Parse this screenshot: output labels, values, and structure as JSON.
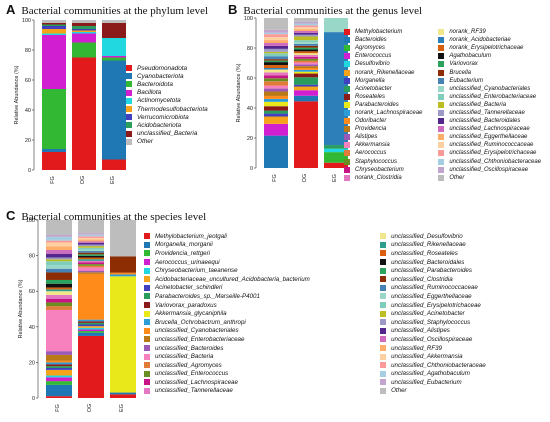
{
  "panels": {
    "A": {
      "letter": "A",
      "title": "Bacterial communities at the phylum level"
    },
    "B": {
      "letter": "B",
      "title": "Bacterial communities at the genus level"
    },
    "C": {
      "letter": "C",
      "title": "Bacterial communities at the species level"
    }
  },
  "chart_data": [
    {
      "id": "A",
      "type": "bar",
      "stacked": true,
      "title": "Bacterial communities at the phylum level",
      "ylabel": "Relative Abundance (%)",
      "ylim": [
        0,
        100
      ],
      "yticks": [
        "0",
        "20",
        "40",
        "60",
        "80",
        "100"
      ],
      "categories": [
        "FG",
        "OG",
        "EG"
      ],
      "series": [
        {
          "name": "Pseudomonadota",
          "color": "#e31a1c",
          "values": [
            12,
            75,
            7
          ]
        },
        {
          "name": "Cyanobacteriota",
          "color": "#1f78b4",
          "values": [
            2,
            0,
            66
          ]
        },
        {
          "name": "Bacteroidota",
          "color": "#33b833",
          "values": [
            40,
            10,
            2
          ]
        },
        {
          "name": "Bacillota",
          "color": "#d01ed0",
          "values": [
            36,
            6,
            1
          ]
        },
        {
          "name": "Actinomycetota",
          "color": "#22d8e0",
          "values": [
            1,
            1,
            12
          ]
        },
        {
          "name": "Thermodesulfobacteriota",
          "color": "#f5a31a",
          "values": [
            3,
            1,
            0
          ]
        },
        {
          "name": "Verrucomicrobiota",
          "color": "#3f3fbf",
          "values": [
            2,
            1,
            0
          ]
        },
        {
          "name": "Acidobacteriota",
          "color": "#2a9d5c",
          "values": [
            1,
            2,
            0
          ]
        },
        {
          "name": "unclassified_Bacteria",
          "color": "#8b1a1a",
          "values": [
            1,
            2,
            10
          ]
        },
        {
          "name": "Other",
          "color": "#bdbdbd",
          "values": [
            2,
            2,
            2
          ]
        }
      ]
    },
    {
      "id": "B",
      "type": "bar",
      "stacked": true,
      "title": "Bacterial communities at the genus level",
      "ylabel": "Relative Abundance (%)",
      "ylim": [
        0,
        100
      ],
      "yticks": [
        "0",
        "20",
        "40",
        "60",
        "80",
        "100"
      ],
      "categories": [
        "FG",
        "OG",
        "EG"
      ],
      "series": [
        {
          "name": "Methylobacterium",
          "color": "#e31a1c",
          "values": [
            0,
            36,
            3
          ]
        },
        {
          "name": "Bacteroides",
          "color": "#1f78b4",
          "values": [
            22,
            3,
            0
          ]
        },
        {
          "name": "Agromyces",
          "color": "#33b833",
          "values": [
            0,
            0,
            6
          ]
        },
        {
          "name": "Enterococcus",
          "color": "#d01ed0",
          "values": [
            8,
            3,
            0
          ]
        },
        {
          "name": "Desulfovibrio",
          "color": "#22d8e0",
          "values": [
            0,
            0,
            2
          ]
        },
        {
          "name": "norank_Rikenellaceae",
          "color": "#f5a31a",
          "values": [
            5,
            2,
            0
          ]
        },
        {
          "name": "Morganella",
          "color": "#3f3fbf",
          "values": [
            2,
            1,
            0
          ]
        },
        {
          "name": "Acinetobacter",
          "color": "#2a9d5c",
          "values": [
            2,
            4,
            2
          ]
        },
        {
          "name": "Roseateles",
          "color": "#8b1a1a",
          "values": [
            3,
            2,
            0
          ]
        },
        {
          "name": "Parabacteroides",
          "color": "#e8e81a",
          "values": [
            3,
            1,
            0
          ]
        },
        {
          "name": "norank_Lachnospiraceae",
          "color": "#2b9ed8",
          "values": [
            2,
            1,
            0
          ]
        },
        {
          "name": "Odoribacter",
          "color": "#ff8c1a",
          "values": [
            2,
            1,
            0
          ]
        },
        {
          "name": "Providencia",
          "color": "#b97917",
          "values": [
            3,
            1,
            0
          ]
        },
        {
          "name": "Alistipes",
          "color": "#9b59b6",
          "values": [
            2,
            1,
            0
          ]
        },
        {
          "name": "Akkermansia",
          "color": "#f781bf",
          "values": [
            2,
            1,
            0
          ]
        },
        {
          "name": "Aerococcus",
          "color": "#e07b39",
          "values": [
            3,
            1,
            0
          ]
        },
        {
          "name": "Staphylococcus",
          "color": "#6b8e23",
          "values": [
            2,
            1,
            0
          ]
        },
        {
          "name": "Chryseobacterium",
          "color": "#c71585",
          "values": [
            2,
            1,
            0
          ]
        },
        {
          "name": "norank_Clostridia",
          "color": "#e377c2",
          "values": [
            2,
            1,
            0
          ]
        },
        {
          "name": "norank_RF39",
          "color": "#f0e68c",
          "values": [
            2,
            1,
            0
          ]
        },
        {
          "name": "norank_Acidobacteriae",
          "color": "#2c7fb8",
          "values": [
            1,
            0,
            64
          ]
        },
        {
          "name": "norank_Erysipelotrichaceae",
          "color": "#d95f0e",
          "values": [
            2,
            1,
            0
          ]
        },
        {
          "name": "Agathobaculum",
          "color": "#111111",
          "values": [
            2,
            1,
            0
          ]
        },
        {
          "name": "Variovorax",
          "color": "#2ca25f",
          "values": [
            1,
            1,
            0
          ]
        },
        {
          "name": "Brucella",
          "color": "#8c2d04",
          "values": [
            1,
            1,
            0
          ]
        },
        {
          "name": "Eubacterium",
          "color": "#4682b4",
          "values": [
            2,
            1,
            0
          ]
        },
        {
          "name": "unclassified_Cyanobacteriales",
          "color": "#99d8c9",
          "values": [
            0,
            1,
            8
          ]
        },
        {
          "name": "unclassified_Enterobacteriaceae",
          "color": "#7fcdbb",
          "values": [
            2,
            1,
            0
          ]
        },
        {
          "name": "unclassified_Bacteria",
          "color": "#bcbd22",
          "values": [
            1,
            2,
            0
          ]
        },
        {
          "name": "unclassified_Tannerellaceae",
          "color": "#9e9ac8",
          "values": [
            2,
            1,
            0
          ]
        },
        {
          "name": "unclassified_Bacteroidales",
          "color": "#54278f",
          "values": [
            2,
            1,
            0
          ]
        },
        {
          "name": "unclassified_Lachnospiraceae",
          "color": "#ce6dbd",
          "values": [
            2,
            1,
            0
          ]
        },
        {
          "name": "unclassified_Eggerthellaceae",
          "color": "#fdae6b",
          "values": [
            2,
            1,
            0
          ]
        },
        {
          "name": "unclassified_Ruminococcaceae",
          "color": "#fdd0a2",
          "values": [
            2,
            1,
            0
          ]
        },
        {
          "name": "unclassified_Erysipelotrichaceae",
          "color": "#fb9a99",
          "values": [
            2,
            1,
            0
          ]
        },
        {
          "name": "unclassified_Chthoniobacteraceae",
          "color": "#a6cee3",
          "values": [
            1,
            1,
            0
          ]
        },
        {
          "name": "unclassified_Oscillospiraceae",
          "color": "#c2a5cf",
          "values": [
            2,
            1,
            0
          ]
        },
        {
          "name": "Other",
          "color": "#bdbdbd",
          "values": [
            8,
            2,
            0
          ]
        }
      ]
    },
    {
      "id": "C",
      "type": "bar",
      "stacked": true,
      "title": "Bacterial communities at the species level",
      "ylabel": "Relative Abundance (%)",
      "ylim": [
        0,
        100
      ],
      "yticks": [
        "0",
        "20",
        "40",
        "60",
        "80",
        "100"
      ],
      "categories": [
        "FG",
        "OG",
        "EG"
      ],
      "series": [
        {
          "name": "Methylobacterium_jeotgali",
          "color": "#e31a1c",
          "values": [
            1,
            38,
            2
          ]
        },
        {
          "name": "Morganella_morganii",
          "color": "#1f78b4",
          "values": [
            6,
            2,
            1
          ]
        },
        {
          "name": "Providencia_rettgeri",
          "color": "#33b833",
          "values": [
            2,
            1,
            0
          ]
        },
        {
          "name": "Aerococcus_urinaeequi",
          "color": "#d01ed0",
          "values": [
            2,
            1,
            0
          ]
        },
        {
          "name": "Chryseobacterium_taeanense",
          "color": "#22d8e0",
          "values": [
            1,
            1,
            0
          ]
        },
        {
          "name": "Acidobacteriaceae_uncultured_Acidobacteria_bacterium",
          "color": "#f5a31a",
          "values": [
            3,
            1,
            0
          ]
        },
        {
          "name": "Acinetobacter_schindleri",
          "color": "#3f3fbf",
          "values": [
            1,
            1,
            0
          ]
        },
        {
          "name": "Parabacteroides_sp._Marseille-P4001",
          "color": "#2a9d5c",
          "values": [
            1,
            1,
            0
          ]
        },
        {
          "name": "Variovorax_paradoxus",
          "color": "#8b1a1a",
          "values": [
            1,
            1,
            0
          ]
        },
        {
          "name": "Akkermansia_glycaniphila",
          "color": "#e8e81a",
          "values": [
            0,
            0,
            64
          ]
        },
        {
          "name": "Brucella_Ochrobactrum_anthropi",
          "color": "#2b9ed8",
          "values": [
            1,
            1,
            1
          ]
        },
        {
          "name": "unclassified_Cyanobacteriales",
          "color": "#ff8c1a",
          "values": [
            1,
            28,
            1
          ]
        },
        {
          "name": "unclassified_Enterobacteriaceae",
          "color": "#b97917",
          "values": [
            3,
            1,
            0
          ]
        },
        {
          "name": "unclassified_Bacteroides",
          "color": "#9b59b6",
          "values": [
            2,
            1,
            0
          ]
        },
        {
          "name": "unclassified_Bacteria",
          "color": "#f781bf",
          "values": [
            22,
            2,
            0
          ]
        },
        {
          "name": "unclassified_Agromyces",
          "color": "#e07b39",
          "values": [
            2,
            1,
            0
          ]
        },
        {
          "name": "unclassified_Enterococcus",
          "color": "#6b8e23",
          "values": [
            2,
            1,
            0
          ]
        },
        {
          "name": "unclassified_Lachnospiraceae",
          "color": "#c71585",
          "values": [
            2,
            1,
            0
          ]
        },
        {
          "name": "unclassified_Tannerellaceae",
          "color": "#e377c2",
          "values": [
            2,
            1,
            0
          ]
        },
        {
          "name": "unclassified_Desulfovibrio",
          "color": "#f0e68c",
          "values": [
            2,
            0,
            0
          ]
        },
        {
          "name": "unclassified_Rikenellaceae",
          "color": "#2c9c8c",
          "values": [
            1,
            1,
            0
          ]
        },
        {
          "name": "unclassified_Roseateles",
          "color": "#d95f0e",
          "values": [
            1,
            1,
            0
          ]
        },
        {
          "name": "unclassified_Bacteroidales",
          "color": "#111111",
          "values": [
            2,
            1,
            0
          ]
        },
        {
          "name": "unclassified_Parabacteroides",
          "color": "#2ca25f",
          "values": [
            2,
            1,
            0
          ]
        },
        {
          "name": "unclassified_Clostridia",
          "color": "#8c2d04",
          "values": [
            4,
            1,
            9
          ]
        },
        {
          "name": "unclassified_Ruminococcaceae",
          "color": "#4682b4",
          "values": [
            2,
            1,
            0
          ]
        },
        {
          "name": "unclassified_Eggerthellaceae",
          "color": "#99d8c9",
          "values": [
            2,
            1,
            0
          ]
        },
        {
          "name": "unclassified_Erysipelotrichaceae",
          "color": "#7fcdbb",
          "values": [
            2,
            1,
            0
          ]
        },
        {
          "name": "unclassified_Acinetobacter",
          "color": "#bcbd22",
          "values": [
            1,
            1,
            0
          ]
        },
        {
          "name": "unclassified_Staphylococcus",
          "color": "#9e9ac8",
          "values": [
            1,
            1,
            0
          ]
        },
        {
          "name": "unclassified_Alistipes",
          "color": "#54278f",
          "values": [
            2,
            1,
            0
          ]
        },
        {
          "name": "unclassified_Oscillospiraceae",
          "color": "#ce6dbd",
          "values": [
            2,
            1,
            0
          ]
        },
        {
          "name": "unclassified_RF39",
          "color": "#fdae6b",
          "values": [
            2,
            1,
            0
          ]
        },
        {
          "name": "unclassified_Akkermansia",
          "color": "#fdd0a2",
          "values": [
            2,
            1,
            0
          ]
        },
        {
          "name": "unclassified_Chthoniobacteraceae",
          "color": "#fb9a99",
          "values": [
            1,
            1,
            0
          ]
        },
        {
          "name": "unclassified_Agathobaculum",
          "color": "#a6cee3",
          "values": [
            2,
            1,
            0
          ]
        },
        {
          "name": "unclassified_Eubacterium",
          "color": "#c2a5cf",
          "values": [
            1,
            1,
            0
          ]
        },
        {
          "name": "Other",
          "color": "#bdbdbd",
          "values": [
            8,
            8,
            20
          ]
        }
      ]
    }
  ]
}
